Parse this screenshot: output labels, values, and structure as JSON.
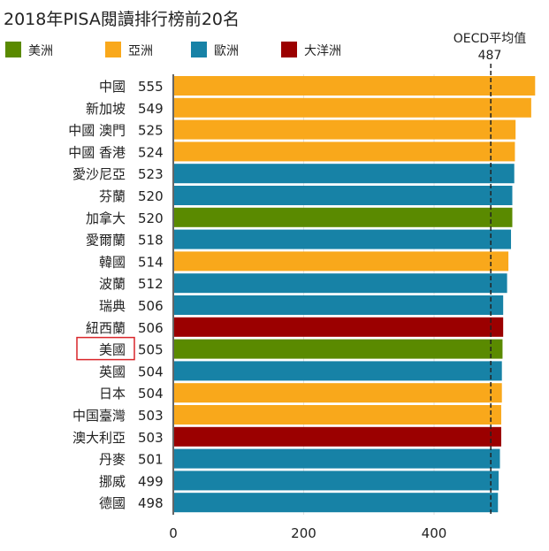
{
  "chart_data": {
    "type": "bar",
    "orientation": "horizontal",
    "title": "2018年PISA閱讀排行榜前20名",
    "xlabel": "",
    "ylabel": "",
    "xlim": [
      0,
      560
    ],
    "x_ticks": [
      0,
      200,
      400
    ],
    "grid": true,
    "legend_placement": "top",
    "legend": [
      {
        "name": "美洲",
        "color": "#5a8a00"
      },
      {
        "name": "亞洲",
        "color": "#f9a81b"
      },
      {
        "name": "歐洲",
        "color": "#1782a6"
      },
      {
        "name": "大洋洲",
        "color": "#9b0000"
      }
    ],
    "reference_line": {
      "label": "OECD平均值",
      "value": 487,
      "value_label": "487",
      "style": "dashed"
    },
    "highlighted_category": "美國",
    "highlight_color": "#d9252a",
    "categories": [
      "中國",
      "新加坡",
      "中國 澳門",
      "中國 香港",
      "愛沙尼亞",
      "芬蘭",
      "加拿大",
      "愛爾蘭",
      "韓國",
      "波蘭",
      "瑞典",
      "紐西蘭",
      "美國",
      "英國",
      "日本",
      "中国臺灣",
      "澳大利亞",
      "丹麥",
      "挪威",
      "德國"
    ],
    "values": [
      555,
      549,
      525,
      524,
      523,
      520,
      520,
      518,
      514,
      512,
      506,
      506,
      505,
      504,
      504,
      503,
      503,
      501,
      499,
      498
    ],
    "regions": [
      "亞洲",
      "亞洲",
      "亞洲",
      "亞洲",
      "歐洲",
      "歐洲",
      "美洲",
      "歐洲",
      "亞洲",
      "歐洲",
      "歐洲",
      "大洋洲",
      "美洲",
      "歐洲",
      "亞洲",
      "亞洲",
      "大洋洲",
      "歐洲",
      "歐洲",
      "歐洲"
    ]
  }
}
